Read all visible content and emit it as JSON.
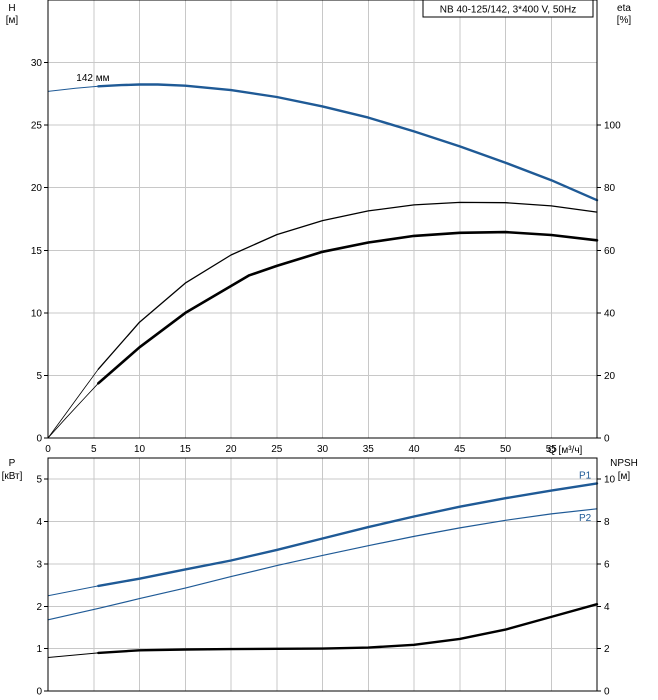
{
  "model_label": "NB 40-125/142, 3*400 V, 50Hz",
  "chart_data": [
    {
      "type": "line",
      "title": "",
      "xlabel": "Q [м³/ч]",
      "x_ticks": [
        "0",
        "5",
        "10",
        "15",
        "20",
        "25",
        "30",
        "35",
        "40",
        "45",
        "50",
        "55"
      ],
      "xlim": [
        0,
        60
      ],
      "ylabel_left": [
        "H",
        "[м]"
      ],
      "ylim_left": [
        0,
        35
      ],
      "y_ticks_left": [
        "0",
        "5",
        "10",
        "15",
        "20",
        "25",
        "30"
      ],
      "ylabel_right": [
        "eta",
        "[%]"
      ],
      "ylim_right": [
        0,
        140
      ],
      "y_ticks_right": [
        "0",
        "20",
        "40",
        "60",
        "80",
        "100"
      ],
      "grid": true,
      "annotations": [
        {
          "text": "142 мм",
          "x": 6,
          "y": 28.2
        }
      ],
      "series": [
        {
          "axis": "left",
          "color": "#1f5a96",
          "width": 2.4,
          "x": [
            5.5,
            8,
            10,
            12,
            15,
            20,
            25,
            30,
            35,
            40,
            45,
            50,
            55,
            60
          ],
          "y": [
            28.1,
            28.2,
            28.25,
            28.25,
            28.15,
            27.8,
            27.25,
            26.5,
            25.6,
            24.5,
            23.3,
            22,
            20.6,
            19.0
          ]
        },
        {
          "axis": "left",
          "color": "#1f5a96",
          "width": 1,
          "segment": "extrapolated",
          "x": [
            0,
            3,
            5.5
          ],
          "y": [
            27.7,
            27.95,
            28.1
          ]
        },
        {
          "axis": "right",
          "color": "#000000",
          "width": 1.3,
          "x": [
            5.5,
            10,
            15,
            20,
            25,
            30,
            35,
            40,
            45,
            50,
            55,
            60
          ],
          "y": [
            22,
            37,
            49.5,
            58.5,
            65,
            69.5,
            72.6,
            74.5,
            75.3,
            75.2,
            74.2,
            72.2
          ]
        },
        {
          "axis": "right",
          "color": "#000000",
          "width": 2.6,
          "x": [
            5.5,
            10,
            15,
            22,
            25,
            30,
            35,
            40,
            45,
            50,
            55,
            60
          ],
          "y": [
            17.5,
            29,
            40,
            52,
            55,
            59.5,
            62.5,
            64.6,
            65.6,
            65.8,
            64.9,
            63.2
          ]
        },
        {
          "axis": "right",
          "color": "#000000",
          "width": 0.8,
          "segment": "extrapolated",
          "x": [
            0,
            2,
            4,
            5.5
          ],
          "y": [
            0,
            8,
            16,
            22
          ]
        },
        {
          "axis": "right",
          "color": "#000000",
          "width": 0.8,
          "segment": "extrapolated",
          "x": [
            0,
            2,
            4,
            5.5
          ],
          "y": [
            0,
            6.5,
            12.8,
            17.5
          ]
        }
      ]
    },
    {
      "type": "line",
      "title": "",
      "xlabel": "",
      "xlim": [
        0,
        60
      ],
      "ylabel_left": [
        "P",
        "[кВт]"
      ],
      "ylim_left": [
        0,
        5.5
      ],
      "y_ticks_left": [
        "0",
        "1",
        "2",
        "3",
        "4",
        "5"
      ],
      "ylabel_right": [
        "NPSH",
        "[м]"
      ],
      "ylim_right": [
        0,
        11
      ],
      "y_ticks_right": [
        "0",
        "2",
        "4",
        "6",
        "8",
        "10"
      ],
      "grid": true,
      "series": [
        {
          "name": "P1",
          "axis": "left",
          "color": "#1f5a96",
          "width": 2.4,
          "x": [
            5.5,
            10,
            15,
            20,
            25,
            30,
            35,
            40,
            45,
            50,
            55,
            60
          ],
          "y": [
            2.48,
            2.65,
            2.87,
            3.08,
            3.33,
            3.6,
            3.87,
            4.12,
            4.35,
            4.55,
            4.73,
            4.9
          ]
        },
        {
          "axis": "left",
          "color": "#1f5a96",
          "width": 1,
          "segment": "extrapolated",
          "x": [
            0,
            5.5
          ],
          "y": [
            2.25,
            2.48
          ]
        },
        {
          "name": "P2",
          "axis": "left",
          "color": "#1f5a96",
          "width": 1.2,
          "x": [
            0,
            5.5,
            10,
            15,
            20,
            25,
            30,
            35,
            40,
            45,
            50,
            55,
            60
          ],
          "y": [
            1.68,
            1.95,
            2.18,
            2.43,
            2.7,
            2.96,
            3.2,
            3.43,
            3.65,
            3.85,
            4.03,
            4.18,
            4.3
          ]
        },
        {
          "axis": "right",
          "color": "#000000",
          "width": 2.4,
          "x": [
            5.5,
            10,
            15,
            20,
            25,
            30,
            35,
            40,
            45,
            50,
            55,
            60
          ],
          "y": [
            1.8,
            1.92,
            1.96,
            1.98,
            1.99,
            2.0,
            2.05,
            2.18,
            2.46,
            2.9,
            3.5,
            4.1
          ]
        },
        {
          "axis": "right",
          "color": "#000000",
          "width": 1,
          "segment": "extrapolated",
          "x": [
            0,
            5.5
          ],
          "y": [
            1.58,
            1.8
          ]
        }
      ]
    }
  ]
}
